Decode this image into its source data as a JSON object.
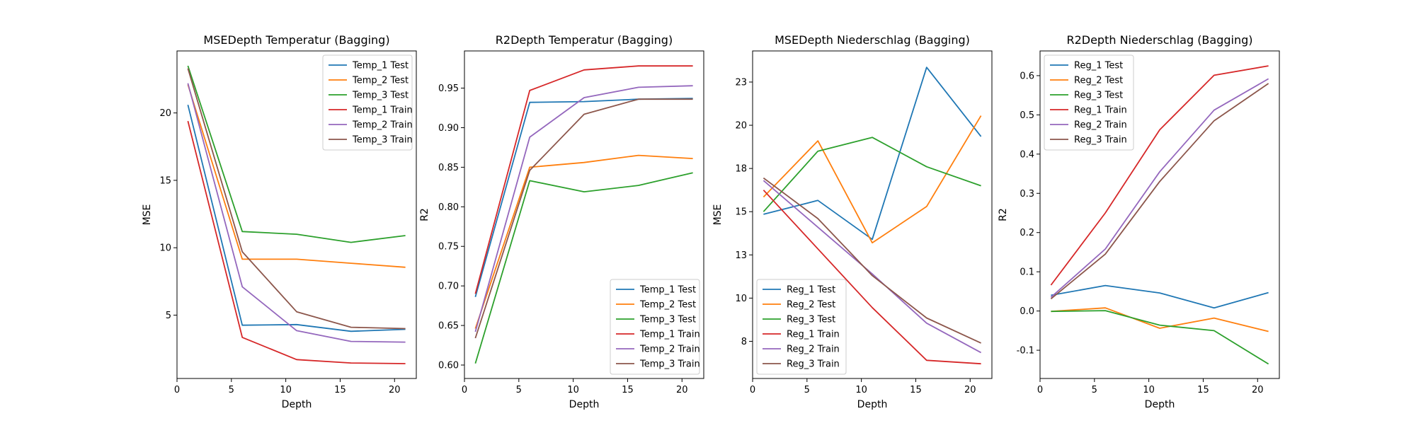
{
  "chart_data": [
    {
      "type": "line",
      "title": "MSEDepth Temperatur (Bagging)",
      "xlabel": "Depth",
      "ylabel": "MSE",
      "x": [
        1,
        6,
        11,
        16,
        21
      ],
      "xlim": [
        0,
        22
      ],
      "ylim": [
        0.3,
        24.6
      ],
      "xticks": [
        0,
        5,
        10,
        15,
        20
      ],
      "yticks": [
        5,
        10,
        15,
        20
      ],
      "legend": "upper right",
      "series": [
        {
          "name": "Temp_1 Test",
          "color": "#1f77b4",
          "values": [
            20.6,
            4.25,
            4.3,
            3.8,
            3.95
          ]
        },
        {
          "name": "Temp_2 Test",
          "color": "#ff7f0e",
          "values": [
            22.1,
            9.15,
            9.15,
            8.85,
            8.55
          ]
        },
        {
          "name": "Temp_3 Test",
          "color": "#2ca02c",
          "values": [
            23.5,
            11.2,
            11.0,
            10.4,
            10.9
          ]
        },
        {
          "name": "Temp_1 Train",
          "color": "#d62728",
          "values": [
            19.4,
            3.35,
            1.7,
            1.45,
            1.4
          ]
        },
        {
          "name": "Temp_2 Train",
          "color": "#9467bd",
          "values": [
            22.2,
            7.1,
            3.85,
            3.05,
            3.0
          ]
        },
        {
          "name": "Temp_3 Train",
          "color": "#8c564b",
          "values": [
            23.3,
            9.7,
            5.25,
            4.1,
            4.0
          ]
        }
      ]
    },
    {
      "type": "line",
      "title": "R2Depth Temperatur (Bagging)",
      "xlabel": "Depth",
      "ylabel": "R2",
      "x": [
        1,
        6,
        11,
        16,
        21
      ],
      "xlim": [
        0,
        22
      ],
      "ylim": [
        0.583,
        0.997
      ],
      "xticks": [
        0,
        5,
        10,
        15,
        20
      ],
      "yticks": [
        0.6,
        0.65,
        0.7,
        0.75,
        0.8,
        0.85,
        0.9,
        0.95
      ],
      "legend": "lower right",
      "series": [
        {
          "name": "Temp_1 Test",
          "color": "#1f77b4",
          "values": [
            0.686,
            0.932,
            0.933,
            0.936,
            0.937
          ]
        },
        {
          "name": "Temp_2 Test",
          "color": "#ff7f0e",
          "values": [
            0.646,
            0.85,
            0.856,
            0.865,
            0.861
          ]
        },
        {
          "name": "Temp_3 Test",
          "color": "#2ca02c",
          "values": [
            0.602,
            0.833,
            0.819,
            0.827,
            0.843
          ]
        },
        {
          "name": "Temp_1 Train",
          "color": "#d62728",
          "values": [
            0.69,
            0.947,
            0.973,
            0.978,
            0.978
          ]
        },
        {
          "name": "Temp_2 Train",
          "color": "#9467bd",
          "values": [
            0.642,
            0.888,
            0.938,
            0.951,
            0.953
          ]
        },
        {
          "name": "Temp_3 Train",
          "color": "#8c564b",
          "values": [
            0.634,
            0.846,
            0.917,
            0.936,
            0.936
          ]
        }
      ]
    },
    {
      "type": "line",
      "title": "MSEDepth Niederschlag (Bagging)",
      "xlabel": "Depth",
      "ylabel": "MSE",
      "x": [
        1,
        6,
        11,
        16,
        21
      ],
      "xlim": [
        0,
        22
      ],
      "ylim": [
        5.35,
        24.3
      ],
      "xticks": [
        0,
        5,
        10,
        15,
        20
      ],
      "yticks": [
        7.5,
        10.0,
        12.5,
        15.0,
        17.5,
        20.0,
        22.5
      ],
      "legend": "lower left",
      "series": [
        {
          "name": "Reg_1 Test",
          "color": "#1f77b4",
          "values": [
            14.85,
            15.65,
            13.4,
            23.35,
            19.35
          ]
        },
        {
          "name": "Reg_2 Test",
          "color": "#ff7f0e",
          "values": [
            15.85,
            19.1,
            13.2,
            15.3,
            20.55
          ]
        },
        {
          "name": "Reg_3 Test",
          "color": "#2ca02c",
          "values": [
            15.0,
            18.5,
            19.3,
            17.6,
            16.5
          ]
        },
        {
          "name": "Reg_1 Train",
          "color": "#d62728",
          "values": [
            16.25,
            12.85,
            9.45,
            6.4,
            6.2
          ]
        },
        {
          "name": "Reg_2 Train",
          "color": "#9467bd",
          "values": [
            16.8,
            14.1,
            11.4,
            8.55,
            6.85
          ]
        },
        {
          "name": "Reg_3 Train",
          "color": "#8c564b",
          "values": [
            16.95,
            14.6,
            11.3,
            8.85,
            7.4
          ]
        }
      ]
    },
    {
      "type": "line",
      "title": "R2Depth Niederschlag (Bagging)",
      "xlabel": "Depth",
      "ylabel": "R2",
      "x": [
        1,
        6,
        11,
        16,
        21
      ],
      "xlim": [
        0,
        22
      ],
      "ylim": [
        -0.172,
        0.663
      ],
      "xticks": [
        0,
        5,
        10,
        15,
        20
      ],
      "yticks": [
        -0.1,
        0.0,
        0.1,
        0.2,
        0.3,
        0.4,
        0.5,
        0.6
      ],
      "legend": "upper left",
      "series": [
        {
          "name": "Reg_1 Test",
          "color": "#1f77b4",
          "values": [
            0.04,
            0.065,
            0.046,
            0.008,
            0.047
          ]
        },
        {
          "name": "Reg_2 Test",
          "color": "#ff7f0e",
          "values": [
            -0.001,
            0.008,
            -0.044,
            -0.018,
            -0.052
          ]
        },
        {
          "name": "Reg_3 Test",
          "color": "#2ca02c",
          "values": [
            -0.001,
            0.001,
            -0.036,
            -0.05,
            -0.135
          ]
        },
        {
          "name": "Reg_1 Train",
          "color": "#d62728",
          "values": [
            0.066,
            0.25,
            0.462,
            0.601,
            0.625
          ]
        },
        {
          "name": "Reg_2 Train",
          "color": "#9467bd",
          "values": [
            0.035,
            0.158,
            0.355,
            0.512,
            0.592
          ]
        },
        {
          "name": "Reg_3 Train",
          "color": "#8c564b",
          "values": [
            0.031,
            0.145,
            0.33,
            0.485,
            0.58
          ]
        }
      ]
    }
  ]
}
